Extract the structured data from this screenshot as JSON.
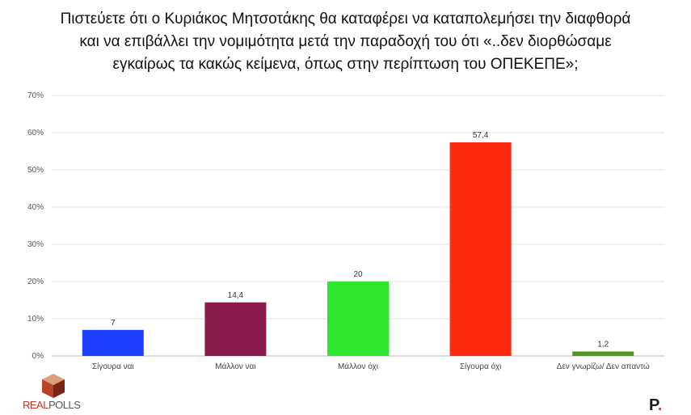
{
  "chart_data": {
    "type": "bar",
    "title_lines": [
      "Πιστεύετε ότι ο Κυριάκος Μητσοτάκης θα καταφέρει να καταπολεμήσει την διαφθορά",
      "και να επιβάλλει την νομιμότητα μετά την παραδοχή του ότι «..δεν διορθώσαμε",
      "εγκαίρως τα κακώς κείμενα, όπως στην περίπτωση του ΟΠΕΚΕΠΕ»;"
    ],
    "categories": [
      "Σίγουρα ναι",
      "Μάλλον ναι",
      "Μάλλον όχι",
      "Σίγουρα όχι",
      "Δεν γνωρίζω/ Δεν απαντώ"
    ],
    "values": [
      7,
      14.4,
      20,
      57.4,
      1.2
    ],
    "value_labels": [
      "7",
      "14,4",
      "20",
      "57,4",
      "1,2"
    ],
    "colors": [
      "#1f3fff",
      "#8b1a4f",
      "#2ee62e",
      "#ff2a12",
      "#4e9a1a"
    ],
    "ylim": [
      0,
      70
    ],
    "yticks": [
      0,
      10,
      20,
      30,
      40,
      50,
      60,
      70
    ],
    "ytick_labels": [
      "0%",
      "10%",
      "20%",
      "30%",
      "40%",
      "50%",
      "60%",
      "70%"
    ],
    "grid": true,
    "legend": "none"
  },
  "branding": {
    "logo_part1": "REAL",
    "logo_part2": "POLLS",
    "logo_color1": "#c0392b",
    "logo_color2": "#555555",
    "corner_mark": "P",
    "corner_dot": "."
  }
}
